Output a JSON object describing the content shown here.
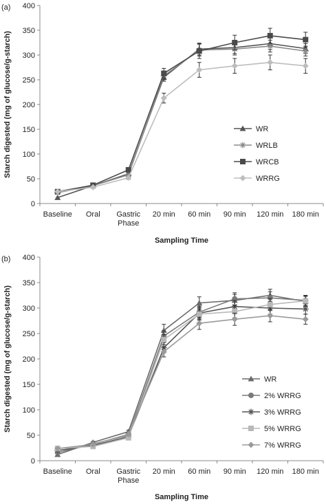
{
  "chart_data": [
    {
      "type": "line",
      "panel_label": "(a)",
      "categories": [
        "Baseline",
        "Oral",
        "Gastric Phase",
        "20 min",
        "60 min",
        "90 min",
        "120 min",
        "180 min"
      ],
      "ylabel": "Starch digested (mg of glucose/g-starch)",
      "xlabel": "Sampling Time",
      "ylim": [
        0,
        400
      ],
      "yticks": [
        0,
        50,
        100,
        150,
        200,
        250,
        300,
        350,
        400
      ],
      "legend_position": "right-middle",
      "series": [
        {
          "name": "WR",
          "marker": "triangle",
          "color": "#555555",
          "values": [
            12,
            36,
            60,
            255,
            312,
            315,
            323,
            313
          ],
          "errors": [
            0,
            2,
            3,
            8,
            12,
            12,
            12,
            10
          ]
        },
        {
          "name": "WRLB",
          "marker": "star",
          "color": "#8a8a8a",
          "values": [
            22,
            36,
            58,
            258,
            310,
            312,
            318,
            308
          ],
          "errors": [
            0,
            2,
            3,
            8,
            12,
            12,
            12,
            10
          ]
        },
        {
          "name": "WRCB",
          "marker": "square",
          "color": "#4a4a4a",
          "values": [
            24,
            37,
            68,
            263,
            308,
            325,
            339,
            331
          ],
          "errors": [
            0,
            2,
            3,
            10,
            15,
            15,
            15,
            15
          ]
        },
        {
          "name": "WRRG",
          "marker": "diamond",
          "color": "#bdbdbd",
          "values": [
            24,
            33,
            52,
            213,
            270,
            278,
            285,
            278
          ],
          "errors": [
            0,
            2,
            3,
            10,
            15,
            15,
            15,
            15
          ]
        }
      ]
    },
    {
      "type": "line",
      "panel_label": "(b)",
      "categories": [
        "Baseline",
        "Oral",
        "Gastric Phase",
        "20 min",
        "60 min",
        "90 min",
        "120 min",
        "180 min"
      ],
      "ylabel": "Starch digested (mg of glucose/g-starch)",
      "xlabel": "Sampling Time",
      "ylim": [
        0,
        400
      ],
      "yticks": [
        0,
        50,
        100,
        150,
        200,
        250,
        300,
        350,
        400
      ],
      "legend_position": "right-bottom",
      "series": [
        {
          "name": "WR",
          "marker": "triangle",
          "color": "#6a6a6a",
          "values": [
            12,
            36,
            57,
            256,
            310,
            315,
            325,
            313
          ],
          "errors": [
            0,
            2,
            3,
            12,
            12,
            12,
            12,
            10
          ]
        },
        {
          "name": "2% WRRG",
          "marker": "circle",
          "color": "#7a7a7a",
          "values": [
            16,
            33,
            50,
            245,
            292,
            318,
            320,
            315
          ],
          "errors": [
            0,
            2,
            3,
            10,
            12,
            12,
            12,
            10
          ]
        },
        {
          "name": "3% WRRG",
          "marker": "star",
          "color": "#555555",
          "values": [
            20,
            30,
            47,
            222,
            290,
            303,
            300,
            298
          ],
          "errors": [
            0,
            2,
            3,
            10,
            12,
            12,
            12,
            10
          ]
        },
        {
          "name": "5% WRRG",
          "marker": "square",
          "color": "#b8b8b8",
          "values": [
            24,
            28,
            45,
            238,
            288,
            293,
            307,
            314
          ],
          "errors": [
            0,
            2,
            3,
            10,
            12,
            12,
            12,
            10
          ]
        },
        {
          "name": "7% WRRG",
          "marker": "diamond",
          "color": "#9a9a9a",
          "values": [
            24,
            32,
            52,
            214,
            270,
            278,
            285,
            278
          ],
          "errors": [
            0,
            2,
            3,
            10,
            12,
            12,
            12,
            10
          ]
        }
      ]
    }
  ]
}
